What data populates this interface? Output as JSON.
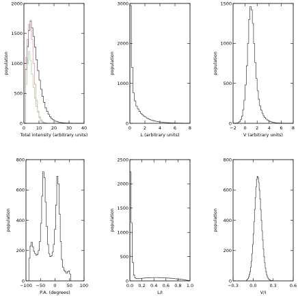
{
  "chart_data": [
    {
      "type": "histogram",
      "xlabel": "Total intensity (arbitrary units)",
      "ylabel": "population",
      "xlim": [
        0,
        40
      ],
      "ylim": [
        0,
        2000
      ],
      "xticks": [
        0,
        10,
        20,
        30,
        40
      ],
      "yticks": [
        0,
        500,
        1000,
        1500,
        2000
      ],
      "yticklabels": [
        "0",
        "500",
        "1000",
        "1500",
        "2000"
      ],
      "series": [
        {
          "color": "#333333",
          "bin_start": 0,
          "bin_width": 1,
          "values": [
            0,
            900,
            1280,
            1550,
            1700,
            1590,
            1450,
            1270,
            1060,
            880,
            720,
            570,
            450,
            350,
            260,
            200,
            150,
            110,
            80,
            60,
            45,
            32,
            24,
            18,
            13,
            10,
            8,
            6,
            5,
            4,
            3,
            3,
            2,
            2,
            1,
            1,
            1,
            1,
            0,
            0
          ]
        },
        {
          "color": "#e08aa0",
          "bin_start": 0,
          "bin_width": 1,
          "values": [
            0,
            1100,
            1400,
            1650,
            1720,
            1400,
            1000,
            650,
            380,
            200,
            90,
            40,
            15,
            5,
            0,
            0
          ]
        },
        {
          "color": "#9cc98c",
          "bin_start": 0,
          "bin_width": 1,
          "values": [
            0,
            650,
            1000,
            1200,
            1050,
            820,
            600,
            420,
            280,
            180,
            110,
            65,
            35,
            18,
            8,
            3,
            0,
            0
          ]
        }
      ]
    },
    {
      "type": "histogram",
      "xlabel": "L (arbitrary units)",
      "ylabel": "population",
      "xlim": [
        0,
        8
      ],
      "ylim": [
        0,
        3000
      ],
      "xticks": [
        0,
        2,
        4,
        6,
        8
      ],
      "yticks": [
        0,
        1000,
        2000,
        3000
      ],
      "yticklabels": [
        "0",
        "1000",
        "2000",
        "3000"
      ],
      "series": [
        {
          "color": "#333333",
          "bin_start": 0,
          "bin_width": 0.2,
          "values": [
            2950,
            1400,
            760,
            560,
            430,
            360,
            300,
            250,
            210,
            180,
            155,
            130,
            110,
            95,
            80,
            68,
            58,
            50,
            43,
            37,
            31,
            27,
            23,
            20,
            17,
            15,
            13,
            11,
            9,
            8,
            7,
            6,
            5,
            4,
            4,
            3,
            3,
            2,
            2,
            2
          ]
        }
      ]
    },
    {
      "type": "histogram",
      "xlabel": "V (arbitrary units)",
      "ylabel": "population",
      "xlim": [
        -2,
        8
      ],
      "ylim": [
        0,
        1500
      ],
      "xticks": [
        -2,
        0,
        2,
        4,
        6,
        8
      ],
      "yticks": [
        0,
        500,
        1000,
        1500
      ],
      "yticklabels": [
        "0",
        "500",
        "1000",
        "1500"
      ],
      "series": [
        {
          "color": "#333333",
          "bin_start": -2,
          "bin_width": 0.2,
          "values": [
            0,
            0,
            2,
            5,
            10,
            22,
            45,
            90,
            170,
            290,
            480,
            720,
            1000,
            1300,
            1460,
            1420,
            1250,
            1000,
            760,
            560,
            410,
            300,
            220,
            165,
            125,
            95,
            72,
            55,
            42,
            33,
            26,
            20,
            15,
            12,
            9,
            7,
            5,
            4,
            3,
            2,
            2,
            1,
            1,
            1,
            0,
            0,
            0,
            0,
            0,
            0
          ]
        }
      ]
    },
    {
      "type": "histogram",
      "xlabel": "P.A. (degrees)",
      "ylabel": "population",
      "xlim": [
        -100,
        100
      ],
      "ylim": [
        0,
        800
      ],
      "xticks": [
        -100,
        -50,
        0,
        50,
        100
      ],
      "yticks": [
        0,
        200,
        400,
        600,
        800
      ],
      "yticklabels": [
        "0",
        "200",
        "400",
        "600",
        "800"
      ],
      "series": [
        {
          "color": "#333333",
          "bin_start": -90,
          "bin_width": 4,
          "values": [
            150,
            230,
            255,
            225,
            195,
            180,
            170,
            175,
            200,
            260,
            380,
            560,
            720,
            680,
            520,
            360,
            240,
            180,
            160,
            165,
            190,
            240,
            340,
            500,
            690,
            640,
            440,
            260,
            140,
            90,
            70,
            60,
            50,
            60,
            65,
            45
          ]
        }
      ]
    },
    {
      "type": "histogram",
      "xlabel": "L/I",
      "ylabel": "population",
      "xlim": [
        0,
        1
      ],
      "ylim": [
        0,
        2500
      ],
      "xticks": [
        0,
        0.2,
        0.4,
        0.6,
        0.8,
        1.0
      ],
      "xticklabels": [
        "0.0",
        "0.2",
        "0.4",
        "0.6",
        "0.8",
        "1.0"
      ],
      "yticks": [
        0,
        500,
        1000,
        1500,
        2000,
        2500
      ],
      "yticklabels": [
        "0",
        "500",
        "1000",
        "1500",
        "2000",
        "2500"
      ],
      "series": [
        {
          "color": "#333333",
          "bin_start": 0,
          "bin_width": 0.02,
          "values": [
            2250,
            1200,
            380,
            120,
            60,
            50,
            45,
            48,
            50,
            52,
            55,
            57,
            60,
            62,
            63,
            65,
            64,
            66,
            68,
            67,
            70,
            68,
            66,
            69,
            67,
            65,
            66,
            64,
            62,
            63,
            60,
            58,
            59,
            55,
            53,
            50,
            48,
            45,
            42,
            40,
            38,
            35,
            32,
            30,
            27,
            22,
            18,
            12,
            8,
            4
          ]
        }
      ]
    },
    {
      "type": "histogram",
      "xlabel": "V/I",
      "ylabel": "population",
      "xlim": [
        -0.3,
        0.6
      ],
      "ylim": [
        0,
        800
      ],
      "xticks": [
        -0.3,
        0,
        0.3,
        0.6
      ],
      "xticklabels": [
        "−0.3",
        "0.0",
        "0.3",
        "0.6"
      ],
      "yticks": [
        0,
        200,
        400,
        600,
        800
      ],
      "yticklabels": [
        "0",
        "200",
        "400",
        "600",
        "800"
      ],
      "series": [
        {
          "color": "#333333",
          "bin_start": -0.1,
          "bin_width": 0.01,
          "values": [
            5,
            10,
            15,
            25,
            40,
            60,
            90,
            130,
            180,
            240,
            310,
            390,
            470,
            550,
            620,
            670,
            690,
            680,
            650,
            600,
            540,
            470,
            400,
            330,
            270,
            210,
            160,
            120,
            85,
            60,
            40,
            28,
            18,
            12,
            8,
            5,
            3,
            2,
            1,
            1
          ]
        }
      ]
    }
  ]
}
